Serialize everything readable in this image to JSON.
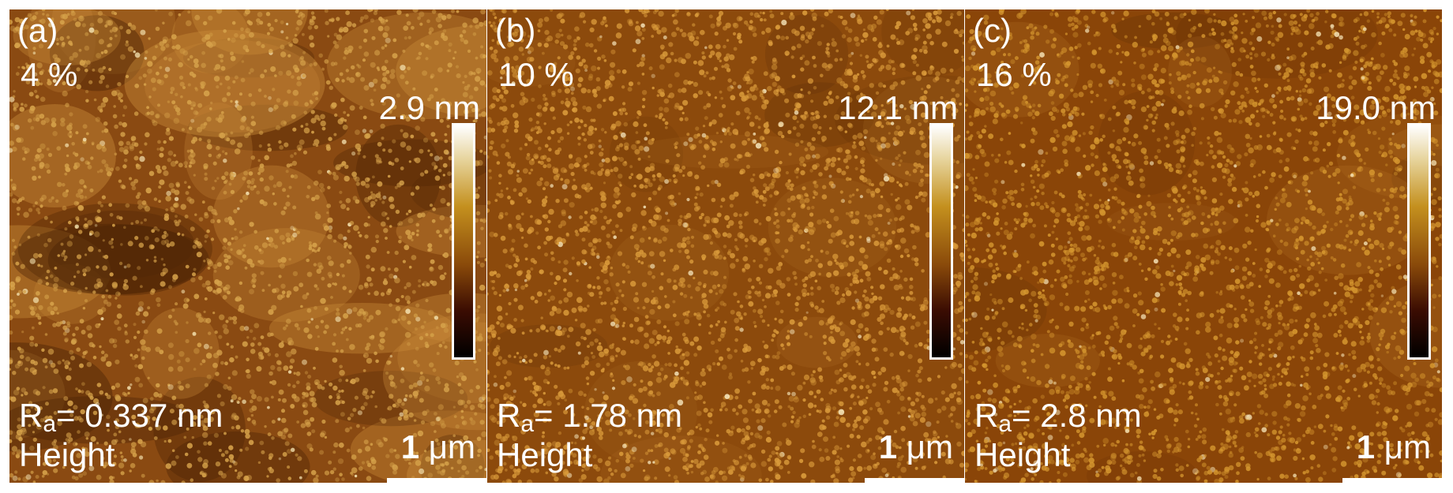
{
  "panels": [
    {
      "label": "(a)",
      "concentration": "4 %",
      "colorbar_max": "2.9 nm",
      "ra_symbol": "R",
      "ra_subscript": "a",
      "ra_value": "= 0.337 nm",
      "mode": "Height",
      "scale_number": "1",
      "scale_unit": " μm",
      "base_color": "#8a4a12",
      "grain_color": "#d6a24a",
      "bright_color": "#f4e2b0"
    },
    {
      "label": "(b)",
      "concentration": "10 %",
      "colorbar_max": "12.1 nm",
      "ra_symbol": "R",
      "ra_subscript": "a",
      "ra_value": "= 1.78 nm",
      "mode": "Height",
      "scale_number": "1",
      "scale_unit": " μm",
      "base_color": "#8c4a0c",
      "grain_color": "#d99a3a",
      "bright_color": "#f6e6bc"
    },
    {
      "label": "(c)",
      "concentration": "16 %",
      "colorbar_max": "19.0 nm",
      "ra_symbol": "R",
      "ra_subscript": "a",
      "ra_value": "= 2.8 nm",
      "mode": "Height",
      "scale_number": "1",
      "scale_unit": " μm",
      "base_color": "#8a4508",
      "grain_color": "#d4952e",
      "bright_color": "#f2deb0"
    }
  ]
}
